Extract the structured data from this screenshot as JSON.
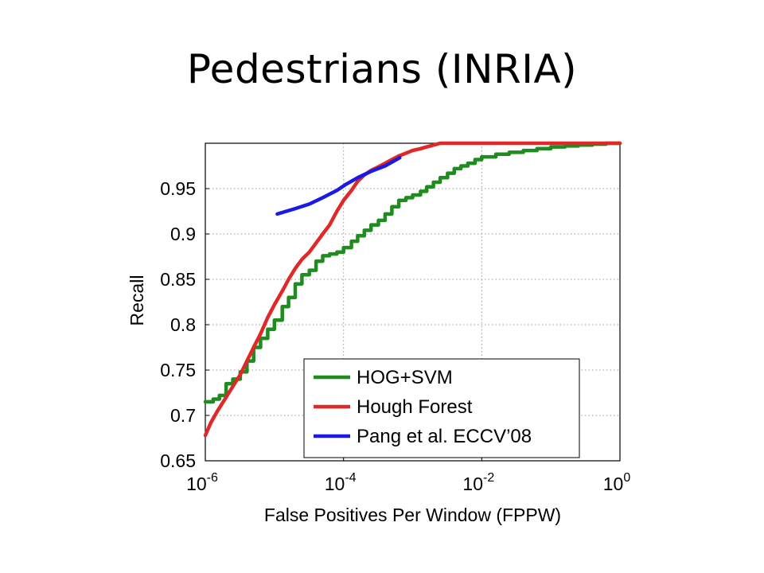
{
  "slide": {
    "title": "Pedestrians (INRIA)"
  },
  "chart_data": {
    "type": "line",
    "xlabel": "False Positives Per Window (FPPW)",
    "ylabel": "Recall",
    "xscale": "log",
    "xlim": [
      1e-06,
      1
    ],
    "ylim": [
      0.65,
      1.0
    ],
    "grid": true,
    "legend_position": "bottom-right",
    "x_ticks": [
      {
        "base": "10",
        "exp": "-6",
        "value": 1e-06
      },
      {
        "base": "10",
        "exp": "-4",
        "value": 0.0001
      },
      {
        "base": "10",
        "exp": "-2",
        "value": 0.01
      },
      {
        "base": "10",
        "exp": "0",
        "value": 1
      }
    ],
    "y_ticks": [
      {
        "label": "0.65",
        "value": 0.65
      },
      {
        "label": "0.7",
        "value": 0.7
      },
      {
        "label": "0.75",
        "value": 0.75
      },
      {
        "label": "0.8",
        "value": 0.8
      },
      {
        "label": "0.85",
        "value": 0.85
      },
      {
        "label": "0.9",
        "value": 0.9
      },
      {
        "label": "0.95",
        "value": 0.95
      }
    ],
    "series": [
      {
        "name": "HOG+SVM",
        "color": "#1e8c1e",
        "x": [
          1e-06,
          1.3e-06,
          1.6e-06,
          2e-06,
          2.5e-06,
          3.2e-06,
          4e-06,
          5e-06,
          6.3e-06,
          8e-06,
          1e-05,
          1.3e-05,
          1.6e-05,
          2e-05,
          2.5e-05,
          3.2e-05,
          4e-05,
          5e-05,
          6.3e-05,
          8e-05,
          0.0001,
          0.00013,
          0.00016,
          0.0002,
          0.00025,
          0.00032,
          0.0004,
          0.0005,
          0.00063,
          0.0008,
          0.001,
          0.0013,
          0.0016,
          0.002,
          0.0025,
          0.0032,
          0.004,
          0.005,
          0.0063,
          0.008,
          0.01,
          0.016,
          0.025,
          0.04,
          0.063,
          0.1,
          0.16,
          0.25,
          0.4,
          0.63,
          1
        ],
        "y": [
          0.715,
          0.718,
          0.722,
          0.735,
          0.74,
          0.748,
          0.76,
          0.775,
          0.785,
          0.795,
          0.805,
          0.82,
          0.83,
          0.845,
          0.855,
          0.86,
          0.87,
          0.876,
          0.878,
          0.88,
          0.885,
          0.892,
          0.898,
          0.904,
          0.91,
          0.915,
          0.922,
          0.93,
          0.937,
          0.94,
          0.943,
          0.947,
          0.952,
          0.957,
          0.962,
          0.967,
          0.972,
          0.975,
          0.978,
          0.982,
          0.985,
          0.988,
          0.99,
          0.992,
          0.994,
          0.996,
          0.997,
          0.998,
          0.999,
          1.0,
          1.0
        ]
      },
      {
        "name": "Hough Forest",
        "color": "#e02828",
        "x": [
          1e-06,
          1.2e-06,
          1.5e-06,
          2e-06,
          2.5e-06,
          3.2e-06,
          4e-06,
          5e-06,
          6.3e-06,
          8e-06,
          1e-05,
          1.3e-05,
          1.6e-05,
          2e-05,
          2.5e-05,
          3.2e-05,
          4e-05,
          5e-05,
          6.3e-05,
          8e-05,
          0.0001,
          0.00013,
          0.00016,
          0.0002,
          0.00025,
          0.00032,
          0.0004,
          0.0005,
          0.00063,
          0.0008,
          0.001,
          0.0013,
          0.0016,
          0.002,
          0.0025,
          0.0032,
          0.004,
          0.005,
          0.0063,
          0.008,
          0.01,
          0.016,
          0.025,
          0.04,
          0.063,
          0.1,
          0.25,
          0.63,
          1
        ],
        "y": [
          0.678,
          0.692,
          0.705,
          0.72,
          0.732,
          0.745,
          0.76,
          0.775,
          0.79,
          0.808,
          0.822,
          0.837,
          0.85,
          0.862,
          0.872,
          0.88,
          0.89,
          0.9,
          0.91,
          0.925,
          0.937,
          0.948,
          0.958,
          0.965,
          0.97,
          0.974,
          0.978,
          0.982,
          0.986,
          0.989,
          0.992,
          0.994,
          0.996,
          0.998,
          1.0,
          1.0,
          1.0,
          1.0,
          1.0,
          1.0,
          1.0,
          1.0,
          1.0,
          1.0,
          1.0,
          1.0,
          1.0,
          1.0,
          1.0
        ]
      },
      {
        "name": "Pang et al. ECCV’08",
        "color": "#1a1ae6",
        "x": [
          1.1e-05,
          2e-05,
          3.2e-05,
          5e-05,
          8e-05,
          0.00011,
          0.00016,
          0.00025,
          0.0004,
          0.00065
        ],
        "y": [
          0.922,
          0.928,
          0.933,
          0.94,
          0.948,
          0.955,
          0.962,
          0.969,
          0.975,
          0.984
        ]
      }
    ]
  }
}
